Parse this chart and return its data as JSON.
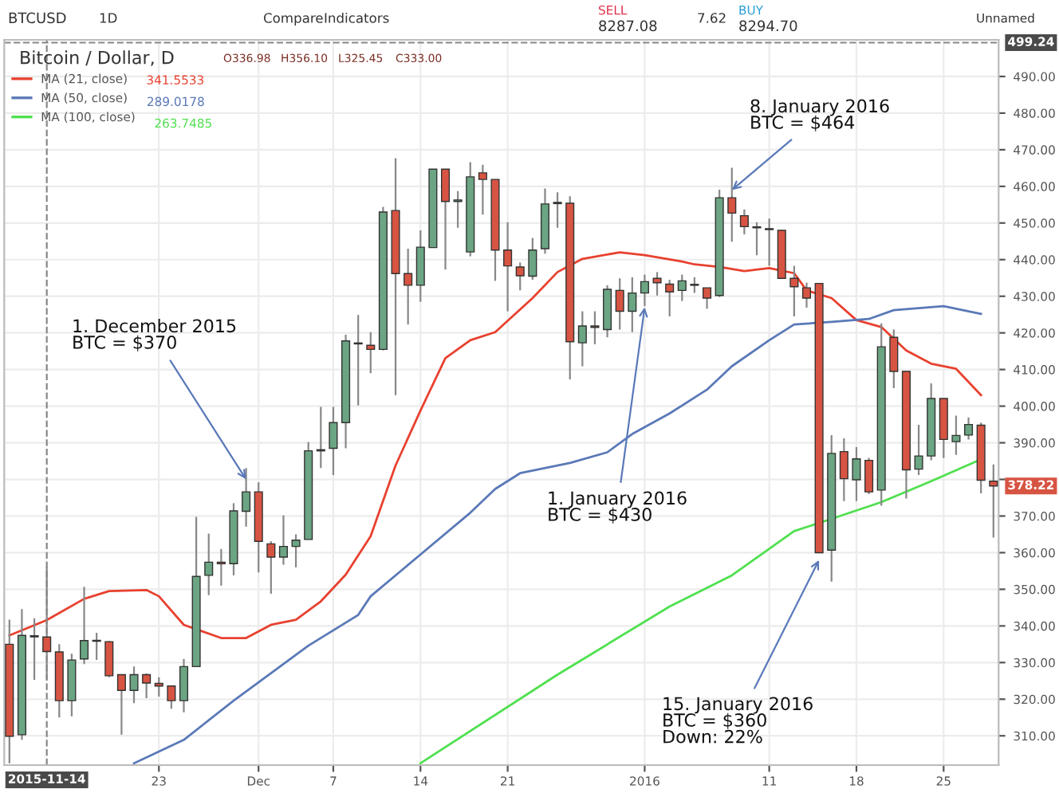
{
  "chart_data": {
    "type": "candlestick",
    "title": "Bitcoin / Dollar, D",
    "x": [
      "2015-11-11",
      "2015-11-12",
      "2015-11-13",
      "2015-11-14",
      "2015-11-15",
      "2015-11-16",
      "2015-11-17",
      "2015-11-18",
      "2015-11-19",
      "2015-11-20",
      "2015-11-21",
      "2015-11-22",
      "2015-11-23",
      "2015-11-24",
      "2015-11-25",
      "2015-11-26",
      "2015-11-27",
      "2015-11-28",
      "2015-11-29",
      "2015-11-30",
      "2015-12-01",
      "2015-12-02",
      "2015-12-03",
      "2015-12-04",
      "2015-12-05",
      "2015-12-06",
      "2015-12-07",
      "2015-12-08",
      "2015-12-09",
      "2015-12-10",
      "2015-12-11",
      "2015-12-12",
      "2015-12-13",
      "2015-12-14",
      "2015-12-15",
      "2015-12-16",
      "2015-12-17",
      "2015-12-18",
      "2015-12-19",
      "2015-12-20",
      "2015-12-21",
      "2015-12-22",
      "2015-12-23",
      "2015-12-24",
      "2015-12-25",
      "2015-12-26",
      "2015-12-27",
      "2015-12-28",
      "2015-12-29",
      "2015-12-30",
      "2015-12-31",
      "2016-01-01",
      "2016-01-02",
      "2016-01-03",
      "2016-01-04",
      "2016-01-05",
      "2016-01-06",
      "2016-01-07",
      "2016-01-08",
      "2016-01-09",
      "2016-01-10",
      "2016-01-11",
      "2016-01-12",
      "2016-01-13",
      "2016-01-14",
      "2016-01-15",
      "2016-01-16",
      "2016-01-17",
      "2016-01-18",
      "2016-01-19",
      "2016-01-20",
      "2016-01-21",
      "2016-01-22",
      "2016-01-23",
      "2016-01-24",
      "2016-01-25",
      "2016-01-26",
      "2016-01-27",
      "2016-01-28",
      "2016-01-29"
    ],
    "ohlc": [
      [
        335.0,
        341.7,
        302.5,
        309.9
      ],
      [
        310.3,
        344.6,
        308.9,
        337.4
      ],
      [
        337.0,
        342.1,
        325.3,
        337.3
      ],
      [
        336.98,
        356.1,
        325.45,
        333.0
      ],
      [
        332.9,
        335.0,
        315.0,
        319.6
      ],
      [
        319.6,
        332.4,
        315.3,
        330.7
      ],
      [
        331.0,
        350.7,
        329.6,
        336.0
      ],
      [
        336.0,
        338.1,
        330.7,
        335.8
      ],
      [
        335.7,
        335.9,
        326.0,
        326.4
      ],
      [
        326.7,
        326.8,
        310.3,
        322.4
      ],
      [
        322.4,
        328.9,
        318.9,
        326.7
      ],
      [
        326.7,
        327.0,
        320.3,
        324.4
      ],
      [
        324.3,
        326.0,
        320.7,
        323.6
      ],
      [
        323.6,
        323.6,
        317.4,
        319.6
      ],
      [
        319.6,
        331.0,
        316.4,
        328.9
      ],
      [
        328.9,
        369.8,
        328.9,
        353.5
      ],
      [
        353.8,
        365.2,
        348.4,
        357.4
      ],
      [
        357.4,
        361.0,
        351.0,
        357.0
      ],
      [
        357.0,
        373.5,
        353.8,
        371.4
      ],
      [
        371.3,
        383.1,
        367.1,
        376.6
      ],
      [
        376.6,
        379.2,
        354.6,
        363.1
      ],
      [
        362.4,
        363.1,
        348.8,
        358.8
      ],
      [
        358.8,
        370.2,
        356.7,
        361.7
      ],
      [
        361.7,
        365.0,
        356.0,
        363.4
      ],
      [
        363.6,
        390.2,
        363.6,
        387.8
      ],
      [
        387.8,
        399.8,
        383.1,
        388.1
      ],
      [
        388.5,
        399.8,
        381.2,
        395.5
      ],
      [
        395.5,
        419.5,
        388.5,
        417.8
      ],
      [
        417.0,
        424.9,
        400.2,
        417.2
      ],
      [
        416.6,
        420.2,
        409.0,
        415.5
      ],
      [
        415.5,
        454.4,
        415.2,
        453.0
      ],
      [
        453.4,
        467.7,
        403.0,
        436.2
      ],
      [
        436.2,
        443.0,
        422.3,
        433.0
      ],
      [
        433.0,
        448.0,
        428.5,
        443.4
      ],
      [
        443.3,
        464.7,
        443.3,
        464.7
      ],
      [
        464.7,
        464.7,
        437.3,
        455.9
      ],
      [
        455.9,
        458.7,
        448.7,
        456.3
      ],
      [
        442.1,
        466.6,
        440.9,
        462.6
      ],
      [
        463.7,
        465.9,
        452.3,
        461.9
      ],
      [
        461.9,
        461.9,
        434.2,
        442.6
      ],
      [
        442.6,
        450.2,
        425.9,
        438.3
      ],
      [
        438.0,
        439.2,
        431.6,
        435.6
      ],
      [
        435.5,
        445.9,
        434.5,
        442.6
      ],
      [
        443.0,
        459.4,
        441.6,
        455.2
      ],
      [
        455.6,
        458.4,
        448.7,
        455.3
      ],
      [
        455.4,
        457.3,
        407.3,
        417.6
      ],
      [
        417.3,
        425.9,
        410.9,
        421.9
      ],
      [
        421.9,
        425.9,
        416.9,
        421.5
      ],
      [
        420.9,
        433.0,
        418.8,
        431.9
      ],
      [
        431.6,
        434.9,
        420.9,
        425.9
      ],
      [
        425.9,
        435.2,
        420.2,
        430.9
      ],
      [
        430.9,
        435.9,
        427.3,
        434.0
      ],
      [
        434.9,
        436.6,
        430.2,
        433.7
      ],
      [
        433.3,
        434.5,
        424.5,
        431.2
      ],
      [
        431.6,
        435.9,
        428.7,
        434.2
      ],
      [
        433.2,
        435.2,
        430.9,
        433.0
      ],
      [
        432.3,
        432.3,
        426.6,
        429.5
      ],
      [
        430.2,
        459.1,
        429.8,
        456.9
      ],
      [
        456.9,
        465.1,
        444.9,
        452.7
      ],
      [
        452.0,
        453.7,
        446.9,
        449.0
      ],
      [
        448.8,
        450.2,
        441.2,
        448.7
      ],
      [
        448.4,
        451.2,
        438.3,
        448.2
      ],
      [
        448.0,
        448.0,
        434.9,
        434.9
      ],
      [
        434.9,
        438.3,
        424.5,
        432.6
      ],
      [
        432.3,
        433.7,
        426.9,
        429.5
      ],
      [
        433.5,
        433.5,
        360.0,
        360.0
      ],
      [
        360.7,
        392.1,
        352.1,
        387.1
      ],
      [
        387.6,
        391.2,
        374.1,
        380.2
      ],
      [
        379.9,
        388.8,
        374.1,
        385.6
      ],
      [
        385.2,
        385.9,
        376.0,
        376.6
      ],
      [
        377.1,
        422.6,
        372.8,
        416.2
      ],
      [
        418.8,
        420.9,
        404.9,
        409.5
      ],
      [
        409.5,
        409.5,
        374.8,
        382.6
      ],
      [
        382.8,
        394.9,
        381.2,
        386.4
      ],
      [
        386.4,
        406.2,
        385.2,
        402.1
      ],
      [
        402.1,
        402.1,
        385.8,
        390.9
      ],
      [
        390.3,
        397.4,
        386.7,
        392.0
      ],
      [
        392.1,
        396.9,
        390.9,
        395.0
      ],
      [
        394.8,
        395.5,
        376.2,
        379.8
      ],
      [
        379.5,
        384.1,
        364.1,
        378.22
      ]
    ],
    "colors": [
      "#d75442",
      "#6ba583",
      "#6ba583",
      "#d75442",
      "#d75442",
      "#6ba583",
      "#6ba583",
      "#d75442",
      "#d75442",
      "#d75442",
      "#6ba583",
      "#d75442",
      "#d75442",
      "#d75442",
      "#6ba583",
      "#6ba583",
      "#6ba583",
      "#d75442",
      "#6ba583",
      "#6ba583",
      "#d75442",
      "#d75442",
      "#6ba583",
      "#6ba583",
      "#6ba583",
      "#6ba583",
      "#6ba583",
      "#6ba583",
      "#6ba583",
      "#d75442",
      "#6ba583",
      "#d75442",
      "#d75442",
      "#6ba583",
      "#6ba583",
      "#d75442",
      "#6ba583",
      "#6ba583",
      "#d75442",
      "#d75442",
      "#d75442",
      "#d75442",
      "#6ba583",
      "#6ba583",
      "#d75442",
      "#d75442",
      "#6ba583",
      "#d75442",
      "#6ba583",
      "#d75442",
      "#6ba583",
      "#6ba583",
      "#d75442",
      "#d75442",
      "#6ba583",
      "#d75442",
      "#d75442",
      "#6ba583",
      "#d75442",
      "#d75442",
      "#d75442",
      "#d75442",
      "#d75442",
      "#d75442",
      "#d75442",
      "#d75442",
      "#6ba583",
      "#d75442",
      "#6ba583",
      "#d75442",
      "#6ba583",
      "#d75442",
      "#d75442",
      "#6ba583",
      "#6ba583",
      "#d75442",
      "#6ba583",
      "#6ba583",
      "#d75442",
      "#d75442"
    ],
    "series": [
      {
        "type": "line",
        "name": "MA (21, close)",
        "color": "#e8412f",
        "x": [
          "2015-11-11",
          "2015-11-14",
          "2015-11-17",
          "2015-11-19",
          "2015-11-22",
          "2015-11-23",
          "2015-11-25",
          "2015-11-28",
          "2015-11-30",
          "2015-12-02",
          "2015-12-04",
          "2015-12-06",
          "2015-12-08",
          "2015-12-10",
          "2015-12-12",
          "2015-12-14",
          "2015-12-16",
          "2015-12-18",
          "2015-12-20",
          "2015-12-23",
          "2015-12-25",
          "2015-12-27",
          "2015-12-30",
          "2016-01-01",
          "2016-01-04",
          "2016-01-05",
          "2016-01-07",
          "2016-01-09",
          "2016-01-11",
          "2016-01-13",
          "2016-01-14",
          "2016-01-16",
          "2016-01-18",
          "2016-01-20",
          "2016-01-22",
          "2016-01-24",
          "2016-01-26",
          "2016-01-28"
        ],
        "values": [
          337.4,
          341.6,
          347.4,
          349.5,
          349.8,
          348.1,
          340.3,
          336.7,
          336.7,
          340.3,
          341.7,
          346.7,
          354.0,
          364.5,
          383.8,
          398.8,
          413.1,
          418.0,
          420.2,
          429.5,
          436.6,
          440.2,
          442.0,
          441.2,
          439.5,
          438.7,
          438.0,
          436.9,
          437.7,
          436.3,
          431.6,
          429.5,
          423.5,
          421.6,
          415.2,
          411.6,
          410.2,
          403.0
        ]
      },
      {
        "type": "line",
        "name": "MA (50, close)",
        "color": "#5a79b8",
        "x": [
          "2015-11-21",
          "2015-11-25",
          "2015-11-29",
          "2015-12-05",
          "2015-12-09",
          "2015-12-10",
          "2015-12-14",
          "2015-12-18",
          "2015-12-20",
          "2015-12-22",
          "2015-12-26",
          "2015-12-29",
          "2015-12-31",
          "2016-01-03",
          "2016-01-06",
          "2016-01-08",
          "2016-01-11",
          "2016-01-13",
          "2016-01-16",
          "2016-01-19",
          "2016-01-21",
          "2016-01-25",
          "2016-01-28"
        ],
        "values": [
          302.5,
          308.9,
          319.6,
          334.6,
          343.0,
          348.1,
          359.5,
          370.9,
          377.4,
          381.7,
          384.5,
          387.4,
          392.4,
          398.0,
          404.5,
          410.9,
          418.0,
          422.3,
          423.0,
          423.8,
          426.2,
          427.3,
          425.2
        ]
      },
      {
        "type": "line",
        "name": "MA (100, close)",
        "color": "#4fe04f",
        "x": [
          "2015-12-14",
          "2015-12-25",
          "2016-01-03",
          "2016-01-08",
          "2016-01-13",
          "2016-01-15",
          "2016-01-20",
          "2016-01-24",
          "2016-01-28"
        ],
        "values": [
          302.5,
          326.7,
          345.3,
          353.8,
          365.9,
          368.1,
          373.8,
          379.5,
          385.5
        ]
      }
    ],
    "xlim": [
      "2015-11-10T14:00",
      "2016-01-29T10:00"
    ],
    "xticks": [
      {
        "value": "2015-11-23",
        "label": "23"
      },
      {
        "value": "2015-12-01",
        "label": "Dec"
      },
      {
        "value": "2015-12-07",
        "label": "7"
      },
      {
        "value": "2015-12-14",
        "label": "14"
      },
      {
        "value": "2015-12-21",
        "label": "21"
      },
      {
        "value": "2016-01-01",
        "label": "2016"
      },
      {
        "value": "2016-01-11",
        "label": "11"
      },
      {
        "value": "2016-01-18",
        "label": "18"
      },
      {
        "value": "2016-01-25",
        "label": "25"
      }
    ],
    "ylim": [
      302,
      500
    ],
    "yticks": [
      {
        "value": 310,
        "label": "310.00"
      },
      {
        "value": 320,
        "label": "320.00"
      },
      {
        "value": 330,
        "label": "330.00"
      },
      {
        "value": 340,
        "label": "340.00"
      },
      {
        "value": 350,
        "label": "350.00"
      },
      {
        "value": 360,
        "label": "360.00"
      },
      {
        "value": 370,
        "label": "370.00"
      },
      {
        "value": 380,
        "label": null
      },
      {
        "value": 390,
        "label": "390.00"
      },
      {
        "value": 400,
        "label": "400.00"
      },
      {
        "value": 410,
        "label": "410.00"
      },
      {
        "value": 420,
        "label": "420.00"
      },
      {
        "value": 430,
        "label": "430.00"
      },
      {
        "value": 440,
        "label": "440.00"
      },
      {
        "value": 450,
        "label": "450.00"
      },
      {
        "value": 460,
        "label": "460.00"
      },
      {
        "value": 470,
        "label": "470.00"
      },
      {
        "value": 480,
        "label": "480.00"
      },
      {
        "value": 490,
        "label": "490.00"
      }
    ],
    "grid": true,
    "legend": "top left",
    "ref_lines": [
      {
        "axis": "x",
        "value": "2015-11-14",
        "label": "2015-11-14",
        "line_style": "dashed"
      },
      {
        "axis": "y",
        "value": 499.24,
        "label": "499.24",
        "line_style": "dashed"
      }
    ],
    "annotations": [
      "BTCUSD",
      "1D",
      "Compare",
      "Indicators",
      "SELL",
      "8287.08",
      "7.62",
      "BUY",
      "8294.70",
      "Unnamed",
      "O336.98",
      "H356.10",
      "L325.45",
      "C333.00",
      "341.5533",
      "289.0178",
      "263.7485",
      {
        "text": "378.22",
        "x": "2016-01-29",
        "y": 378.22
      },
      {
        "text": "1. December 2015\nBTC = $370",
        "x": "2015-11-30",
        "y": 380
      },
      {
        "text": "8. January 2016\nBTC = $464",
        "x": "2016-01-08",
        "y": 459
      },
      {
        "text": "1. January 2016\nBTC = $430",
        "x": "2016-01-01",
        "y": 427
      },
      {
        "text": "15. January 2016\nBTC = $360\nDown: 22%",
        "x": "2016-01-15",
        "y": 358
      }
    ]
  }
}
